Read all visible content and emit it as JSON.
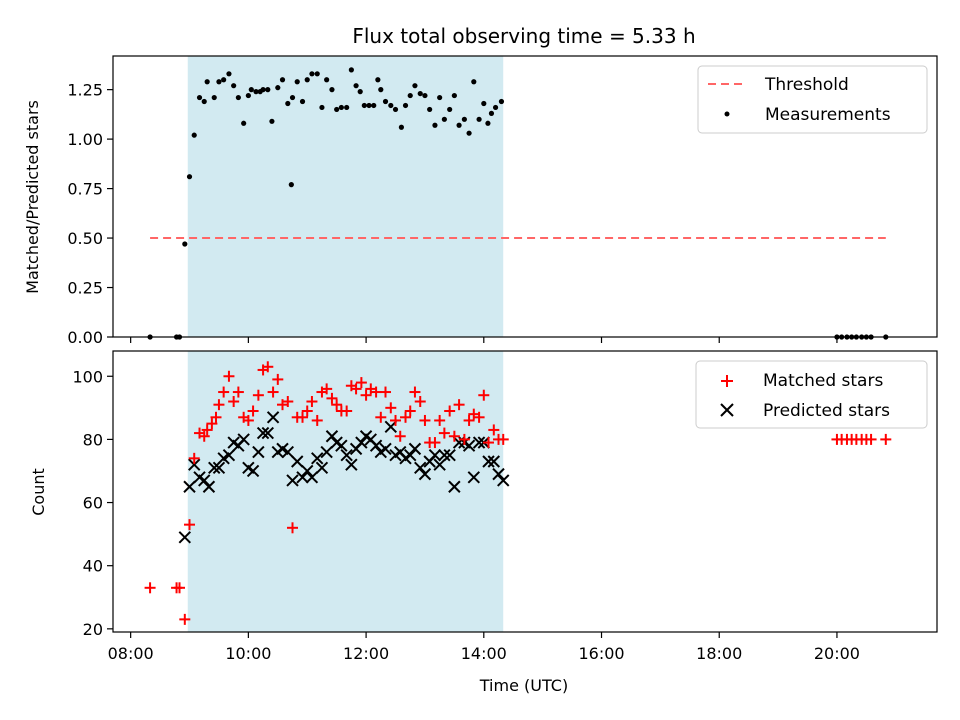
{
  "title": "Flux total observing time = 5.33 h",
  "colors": {
    "observing_band": "#add8e6",
    "threshold": "#ff6666",
    "measurements": "#000000",
    "matched": "#ff0000",
    "predicted": "#000000"
  },
  "chart_data": [
    {
      "type": "scatter",
      "ylabel": "Matched/Predicted stars",
      "ylim": [
        0,
        1.42
      ],
      "xlim": [
        7.7,
        21.7
      ],
      "yticks": [
        {
          "value": 0.0,
          "label": "0.00"
        },
        {
          "value": 0.25,
          "label": "0.25"
        },
        {
          "value": 0.5,
          "label": "0.50"
        },
        {
          "value": 0.75,
          "label": "0.75"
        },
        {
          "value": 1.0,
          "label": "1.00"
        },
        {
          "value": 1.25,
          "label": "1.25"
        }
      ],
      "shaded_span": {
        "x_start": 8.97,
        "x_end": 14.33
      },
      "threshold": {
        "name": "Threshold",
        "y": 0.5,
        "x_start": 8.33,
        "x_end": 20.83
      },
      "measurements": {
        "name": "Measurements",
        "points": [
          [
            8.33,
            0.0
          ],
          [
            8.78,
            0.0
          ],
          [
            8.83,
            0.0
          ],
          [
            8.92,
            0.47
          ],
          [
            9.0,
            0.81
          ],
          [
            9.08,
            1.02
          ],
          [
            9.17,
            1.21
          ],
          [
            9.25,
            1.19
          ],
          [
            9.3,
            1.29
          ],
          [
            9.42,
            1.21
          ],
          [
            9.5,
            1.29
          ],
          [
            9.58,
            1.3
          ],
          [
            9.67,
            1.33
          ],
          [
            9.75,
            1.27
          ],
          [
            9.83,
            1.21
          ],
          [
            9.92,
            1.08
          ],
          [
            10.0,
            1.22
          ],
          [
            10.05,
            1.25
          ],
          [
            10.13,
            1.24
          ],
          [
            10.2,
            1.24
          ],
          [
            10.25,
            1.25
          ],
          [
            10.33,
            1.25
          ],
          [
            10.4,
            1.09
          ],
          [
            10.5,
            1.26
          ],
          [
            10.58,
            1.3
          ],
          [
            10.67,
            1.18
          ],
          [
            10.75,
            1.21
          ],
          [
            10.73,
            0.77
          ],
          [
            10.83,
            1.29
          ],
          [
            10.92,
            1.19
          ],
          [
            11.0,
            1.3
          ],
          [
            11.08,
            1.33
          ],
          [
            11.17,
            1.33
          ],
          [
            11.25,
            1.16
          ],
          [
            11.33,
            1.3
          ],
          [
            11.42,
            1.25
          ],
          [
            11.5,
            1.15
          ],
          [
            11.58,
            1.16
          ],
          [
            11.67,
            1.16
          ],
          [
            11.75,
            1.35
          ],
          [
            11.83,
            1.27
          ],
          [
            11.9,
            1.24
          ],
          [
            11.97,
            1.17
          ],
          [
            12.05,
            1.17
          ],
          [
            12.13,
            1.17
          ],
          [
            12.2,
            1.3
          ],
          [
            12.25,
            1.25
          ],
          [
            12.33,
            1.19
          ],
          [
            12.42,
            1.17
          ],
          [
            12.5,
            1.15
          ],
          [
            12.6,
            1.06
          ],
          [
            12.67,
            1.17
          ],
          [
            12.75,
            1.22
          ],
          [
            12.83,
            1.27
          ],
          [
            12.92,
            1.23
          ],
          [
            13.0,
            1.22
          ],
          [
            13.08,
            1.15
          ],
          [
            13.17,
            1.07
          ],
          [
            13.25,
            1.21
          ],
          [
            13.33,
            1.1
          ],
          [
            13.42,
            1.15
          ],
          [
            13.5,
            1.22
          ],
          [
            13.58,
            1.07
          ],
          [
            13.67,
            1.1
          ],
          [
            13.75,
            1.03
          ],
          [
            13.83,
            1.29
          ],
          [
            13.92,
            1.1
          ],
          [
            14.0,
            1.18
          ],
          [
            14.07,
            1.08
          ],
          [
            14.13,
            1.13
          ],
          [
            14.2,
            1.16
          ],
          [
            14.3,
            1.19
          ],
          [
            20.0,
            0.0
          ],
          [
            20.08,
            0.0
          ],
          [
            20.17,
            0.0
          ],
          [
            20.25,
            0.0
          ],
          [
            20.33,
            0.0
          ],
          [
            20.42,
            0.0
          ],
          [
            20.5,
            0.0
          ],
          [
            20.58,
            0.0
          ],
          [
            20.83,
            0.0
          ]
        ]
      },
      "legend": {
        "placement": "top-right"
      }
    },
    {
      "type": "scatter",
      "ylabel": "Count",
      "xlabel": "Time (UTC)",
      "ylim": [
        19,
        108
      ],
      "xlim": [
        7.7,
        21.7
      ],
      "yticks": [
        {
          "value": 20,
          "label": "20"
        },
        {
          "value": 40,
          "label": "40"
        },
        {
          "value": 60,
          "label": "60"
        },
        {
          "value": 80,
          "label": "80"
        },
        {
          "value": 100,
          "label": "100"
        }
      ],
      "xticks": [
        {
          "value": 8,
          "label": "08:00"
        },
        {
          "value": 10,
          "label": "10:00"
        },
        {
          "value": 12,
          "label": "12:00"
        },
        {
          "value": 14,
          "label": "14:00"
        },
        {
          "value": 16,
          "label": "16:00"
        },
        {
          "value": 18,
          "label": "18:00"
        },
        {
          "value": 20,
          "label": "20:00"
        }
      ],
      "shaded_span": {
        "x_start": 8.97,
        "x_end": 14.33
      },
      "series": [
        {
          "name": "Matched stars",
          "marker": "plus",
          "points": [
            [
              8.33,
              33
            ],
            [
              8.78,
              33
            ],
            [
              8.83,
              33
            ],
            [
              8.92,
              23
            ],
            [
              9.0,
              53
            ],
            [
              9.08,
              74
            ],
            [
              9.17,
              82
            ],
            [
              9.25,
              81
            ],
            [
              9.3,
              83
            ],
            [
              9.38,
              85
            ],
            [
              9.45,
              87
            ],
            [
              9.5,
              91
            ],
            [
              9.58,
              95
            ],
            [
              9.67,
              100
            ],
            [
              9.75,
              92
            ],
            [
              9.83,
              95
            ],
            [
              9.92,
              87
            ],
            [
              10.0,
              86
            ],
            [
              10.08,
              89
            ],
            [
              10.17,
              94
            ],
            [
              10.25,
              102
            ],
            [
              10.33,
              103
            ],
            [
              10.42,
              95
            ],
            [
              10.5,
              99
            ],
            [
              10.58,
              91
            ],
            [
              10.67,
              92
            ],
            [
              10.75,
              52
            ],
            [
              10.83,
              87
            ],
            [
              10.92,
              87
            ],
            [
              11.0,
              89
            ],
            [
              11.08,
              92
            ],
            [
              11.17,
              86
            ],
            [
              11.25,
              95
            ],
            [
              11.33,
              96
            ],
            [
              11.42,
              93
            ],
            [
              11.5,
              91
            ],
            [
              11.58,
              89
            ],
            [
              11.67,
              89
            ],
            [
              11.75,
              97
            ],
            [
              11.83,
              96
            ],
            [
              11.92,
              98
            ],
            [
              12.0,
              94
            ],
            [
              12.08,
              96
            ],
            [
              12.17,
              95
            ],
            [
              12.25,
              87
            ],
            [
              12.33,
              95
            ],
            [
              12.42,
              90
            ],
            [
              12.5,
              86
            ],
            [
              12.58,
              81
            ],
            [
              12.67,
              87
            ],
            [
              12.75,
              89
            ],
            [
              12.83,
              95
            ],
            [
              12.92,
              92
            ],
            [
              13.0,
              86
            ],
            [
              13.08,
              79
            ],
            [
              13.17,
              79
            ],
            [
              13.25,
              86
            ],
            [
              13.33,
              82
            ],
            [
              13.42,
              89
            ],
            [
              13.5,
              81
            ],
            [
              13.58,
              91
            ],
            [
              13.67,
              80
            ],
            [
              13.75,
              86
            ],
            [
              13.83,
              88
            ],
            [
              13.92,
              87
            ],
            [
              14.0,
              94
            ],
            [
              14.08,
              79
            ],
            [
              14.17,
              83
            ],
            [
              14.25,
              80
            ],
            [
              14.33,
              80
            ],
            [
              20.0,
              80
            ],
            [
              20.08,
              80
            ],
            [
              20.17,
              80
            ],
            [
              20.25,
              80
            ],
            [
              20.33,
              80
            ],
            [
              20.42,
              80
            ],
            [
              20.5,
              80
            ],
            [
              20.58,
              80
            ],
            [
              20.83,
              80
            ]
          ]
        },
        {
          "name": "Predicted stars",
          "marker": "x",
          "points": [
            [
              8.92,
              49
            ],
            [
              9.0,
              65
            ],
            [
              9.08,
              72
            ],
            [
              9.17,
              68
            ],
            [
              9.25,
              67
            ],
            [
              9.33,
              65
            ],
            [
              9.42,
              71
            ],
            [
              9.5,
              71
            ],
            [
              9.58,
              74
            ],
            [
              9.67,
              75
            ],
            [
              9.75,
              79
            ],
            [
              9.83,
              78
            ],
            [
              9.92,
              80
            ],
            [
              10.0,
              71
            ],
            [
              10.08,
              70
            ],
            [
              10.17,
              76
            ],
            [
              10.25,
              82
            ],
            [
              10.33,
              82
            ],
            [
              10.42,
              87
            ],
            [
              10.5,
              76
            ],
            [
              10.58,
              77
            ],
            [
              10.67,
              76
            ],
            [
              10.75,
              67
            ],
            [
              10.83,
              73
            ],
            [
              10.92,
              68
            ],
            [
              11.0,
              70
            ],
            [
              11.08,
              68
            ],
            [
              11.17,
              74
            ],
            [
              11.25,
              71
            ],
            [
              11.33,
              76
            ],
            [
              11.42,
              81
            ],
            [
              11.5,
              79
            ],
            [
              11.58,
              78
            ],
            [
              11.67,
              75
            ],
            [
              11.75,
              72
            ],
            [
              11.83,
              77
            ],
            [
              11.92,
              79
            ],
            [
              12.0,
              81
            ],
            [
              12.08,
              80
            ],
            [
              12.17,
              78
            ],
            [
              12.25,
              76
            ],
            [
              12.33,
              77
            ],
            [
              12.42,
              84
            ],
            [
              12.5,
              75
            ],
            [
              12.58,
              76
            ],
            [
              12.67,
              74
            ],
            [
              12.75,
              75
            ],
            [
              12.83,
              77
            ],
            [
              12.92,
              71
            ],
            [
              13.0,
              69
            ],
            [
              13.08,
              73
            ],
            [
              13.17,
              75
            ],
            [
              13.25,
              72
            ],
            [
              13.33,
              75
            ],
            [
              13.42,
              75
            ],
            [
              13.5,
              65
            ],
            [
              13.58,
              79
            ],
            [
              13.67,
              79
            ],
            [
              13.75,
              78
            ],
            [
              13.83,
              68
            ],
            [
              13.92,
              79
            ],
            [
              14.0,
              79
            ],
            [
              14.08,
              73
            ],
            [
              14.17,
              73
            ],
            [
              14.25,
              69
            ],
            [
              14.33,
              67
            ]
          ]
        }
      ],
      "legend": {
        "placement": "top-right"
      }
    }
  ]
}
